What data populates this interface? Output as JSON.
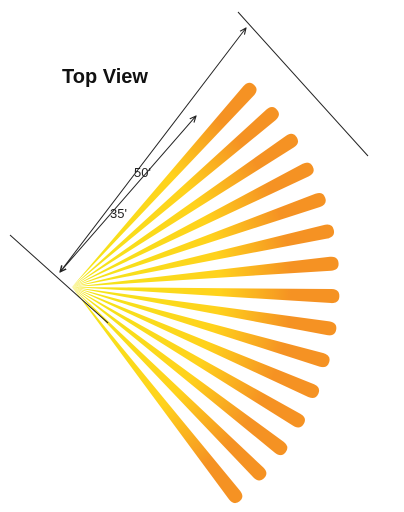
{
  "title": "Top View",
  "dimensions": {
    "outer_label": "50'",
    "inner_label": "35'"
  },
  "colors": {
    "beam_origin": "#f3e81a",
    "beam_mid": "#ffd21c",
    "beam_tip": "#f59223",
    "line": "#222222"
  },
  "beams": {
    "count": 15,
    "outer_range_ft": 50,
    "inner_range_ft": 35
  }
}
